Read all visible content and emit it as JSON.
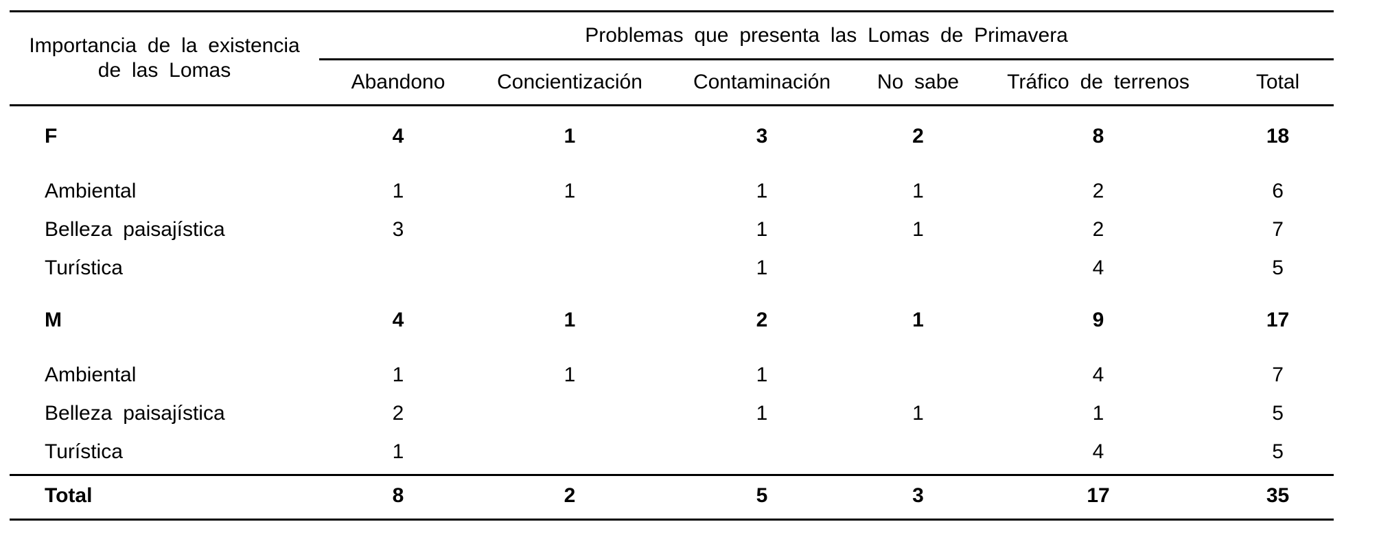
{
  "colors": {
    "background": "#ffffff",
    "text": "#000000",
    "rule": "#000000"
  },
  "table": {
    "row_dimension_title": "Importancia de la existencia de las Lomas",
    "column_group_title": "Problemas que presenta las Lomas de Primavera",
    "column_headers": [
      "Abandono",
      "Concientización",
      "Contaminación",
      "No sabe",
      "Tráfico de terrenos",
      "Total"
    ],
    "rows": [
      {
        "label": "F",
        "values": [
          "4",
          "1",
          "3",
          "2",
          "8",
          "18"
        ]
      },
      {
        "label": "Ambiental",
        "values": [
          "1",
          "1",
          "1",
          "1",
          "2",
          "6"
        ]
      },
      {
        "label": "Belleza paisajística",
        "values": [
          "3",
          "",
          "1",
          "1",
          "2",
          "7"
        ]
      },
      {
        "label": "Turística",
        "values": [
          "",
          "",
          "1",
          "",
          "4",
          "5"
        ]
      },
      {
        "label": "M",
        "values": [
          "4",
          "1",
          "2",
          "1",
          "9",
          "17"
        ]
      },
      {
        "label": "Ambiental",
        "values": [
          "1",
          "1",
          "1",
          "",
          "4",
          "7"
        ]
      },
      {
        "label": "Belleza paisajística",
        "values": [
          "2",
          "",
          "1",
          "1",
          "1",
          "5"
        ]
      },
      {
        "label": "Turística",
        "values": [
          "1",
          "",
          "",
          "",
          "4",
          "5"
        ]
      }
    ],
    "total_row": {
      "label": "Total",
      "values": [
        "8",
        "2",
        "5",
        "3",
        "17",
        "35"
      ]
    }
  }
}
